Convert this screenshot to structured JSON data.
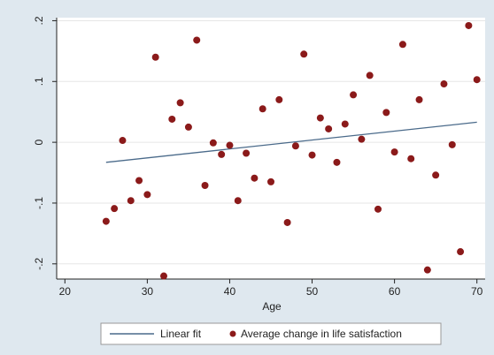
{
  "chart_data": {
    "type": "scatter",
    "title": "",
    "xlabel": "Age",
    "ylabel": "",
    "xlim": [
      19,
      71
    ],
    "ylim": [
      -0.225,
      0.205
    ],
    "xticks": [
      20,
      30,
      40,
      50,
      60,
      70
    ],
    "xtick_labels": [
      "20",
      "30",
      "40",
      "50",
      "60",
      "70"
    ],
    "yticks": [
      -0.2,
      -0.1,
      0,
      0.1,
      0.2
    ],
    "ytick_labels": [
      "-.2",
      "-.1",
      "0",
      ".1",
      ".2"
    ],
    "grid": true,
    "legend_position": "bottom",
    "colors": {
      "background": "#dfe8ef",
      "plot_area": "#ffffff",
      "points": "#8b1a1a",
      "fit_line": "#4a6a8a"
    },
    "series": [
      {
        "name": "Linear fit",
        "kind": "line",
        "x": [
          25,
          70
        ],
        "y": [
          -0.033,
          0.033
        ]
      },
      {
        "name": "Average change in life satisfaction",
        "kind": "scatter",
        "x": [
          25,
          26,
          27,
          28,
          29,
          30,
          31,
          32,
          33,
          34,
          35,
          36,
          37,
          38,
          39,
          40,
          41,
          42,
          43,
          44,
          45,
          46,
          47,
          48,
          49,
          50,
          51,
          52,
          53,
          54,
          55,
          56,
          57,
          58,
          59,
          60,
          61,
          62,
          63,
          64,
          65,
          66,
          67,
          68,
          69,
          70
        ],
        "y": [
          -0.13,
          -0.109,
          0.003,
          -0.096,
          -0.063,
          -0.086,
          0.14,
          -0.22,
          0.038,
          0.065,
          0.025,
          0.168,
          -0.071,
          -0.001,
          -0.02,
          -0.005,
          -0.096,
          -0.018,
          -0.059,
          0.055,
          -0.065,
          0.07,
          -0.132,
          -0.006,
          0.145,
          -0.021,
          0.04,
          0.022,
          -0.033,
          0.03,
          0.078,
          0.005,
          0.11,
          -0.11,
          0.049,
          -0.016,
          0.161,
          -0.027,
          0.07,
          -0.21,
          -0.054,
          0.096,
          -0.004,
          -0.18,
          0.192,
          0.103
        ]
      }
    ]
  }
}
